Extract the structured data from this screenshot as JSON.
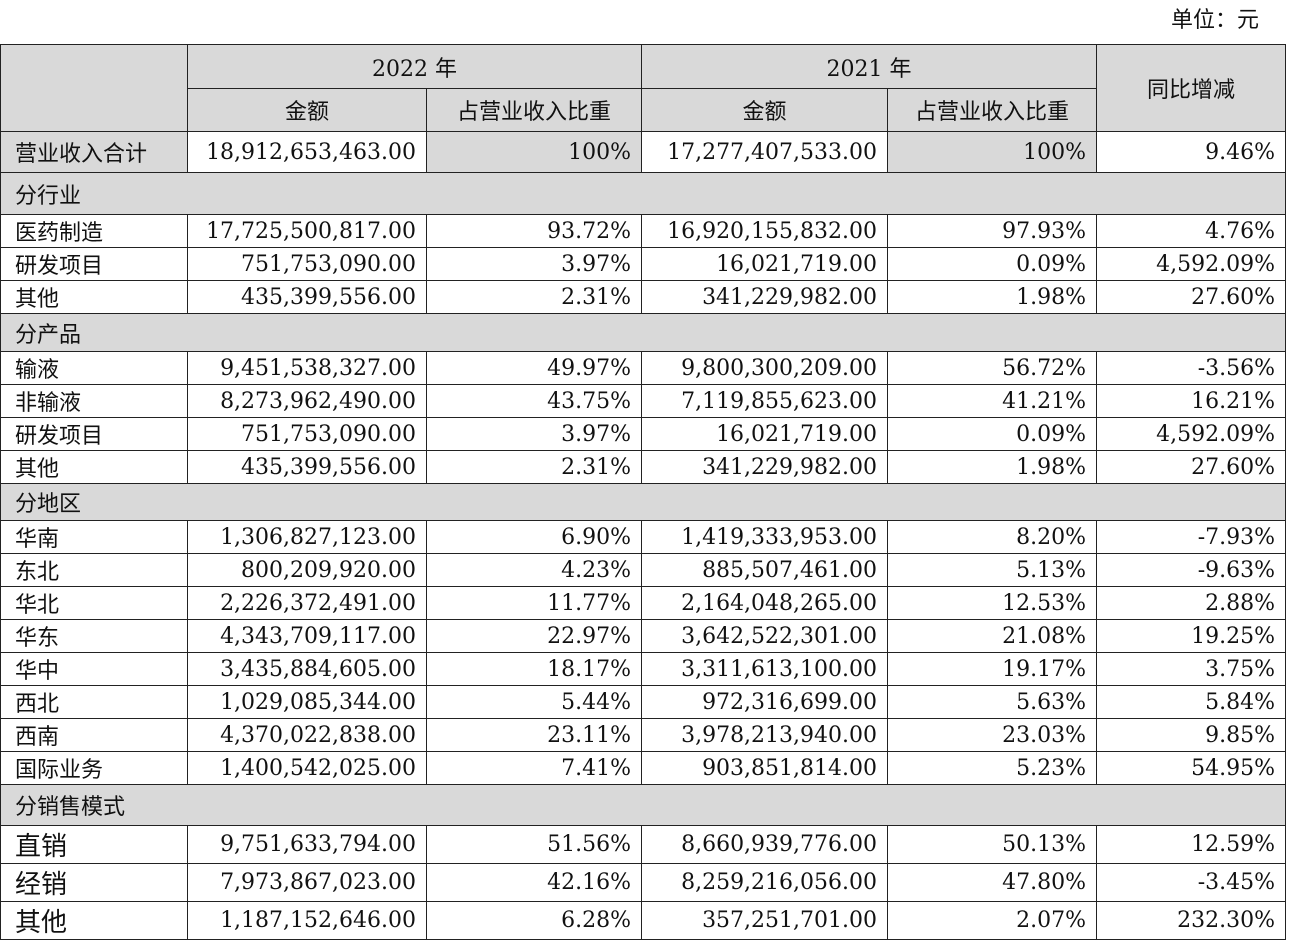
{
  "unit_label": "单位：元",
  "header": {
    "year_2022": "2022 年",
    "year_2021": "2021 年",
    "yoy": "同比增减",
    "amount": "金额",
    "ratio": "占营业收入比重"
  },
  "total": {
    "label": "营业收入合计",
    "a2022": "18,912,653,463.00",
    "p2022": "100%",
    "a2021": "17,277,407,533.00",
    "p2021": "100%",
    "yoy": "9.46%"
  },
  "sections": [
    {
      "title": "分行业",
      "rows": [
        {
          "label": "医药制造",
          "a2022": "17,725,500,817.00",
          "p2022": "93.72%",
          "a2021": "16,920,155,832.00",
          "p2021": "97.93%",
          "yoy": "4.76%"
        },
        {
          "label": "研发项目",
          "a2022": "751,753,090.00",
          "p2022": "3.97%",
          "a2021": "16,021,719.00",
          "p2021": "0.09%",
          "yoy": "4,592.09%"
        },
        {
          "label": "其他",
          "a2022": "435,399,556.00",
          "p2022": "2.31%",
          "a2021": "341,229,982.00",
          "p2021": "1.98%",
          "yoy": "27.60%"
        }
      ]
    },
    {
      "title": "分产品",
      "rows": [
        {
          "label": "输液",
          "a2022": "9,451,538,327.00",
          "p2022": "49.97%",
          "a2021": "9,800,300,209.00",
          "p2021": "56.72%",
          "yoy": "-3.56%"
        },
        {
          "label": "非输液",
          "a2022": "8,273,962,490.00",
          "p2022": "43.75%",
          "a2021": "7,119,855,623.00",
          "p2021": "41.21%",
          "yoy": "16.21%"
        },
        {
          "label": "研发项目",
          "a2022": "751,753,090.00",
          "p2022": "3.97%",
          "a2021": "16,021,719.00",
          "p2021": "0.09%",
          "yoy": "4,592.09%"
        },
        {
          "label": "其他",
          "a2022": "435,399,556.00",
          "p2022": "2.31%",
          "a2021": "341,229,982.00",
          "p2021": "1.98%",
          "yoy": "27.60%"
        }
      ]
    },
    {
      "title": "分地区",
      "rows": [
        {
          "label": "华南",
          "a2022": "1,306,827,123.00",
          "p2022": "6.90%",
          "a2021": "1,419,333,953.00",
          "p2021": "8.20%",
          "yoy": "-7.93%"
        },
        {
          "label": "东北",
          "a2022": "800,209,920.00",
          "p2022": "4.23%",
          "a2021": "885,507,461.00",
          "p2021": "5.13%",
          "yoy": "-9.63%"
        },
        {
          "label": "华北",
          "a2022": "2,226,372,491.00",
          "p2022": "11.77%",
          "a2021": "2,164,048,265.00",
          "p2021": "12.53%",
          "yoy": "2.88%"
        },
        {
          "label": "华东",
          "a2022": "4,343,709,117.00",
          "p2022": "22.97%",
          "a2021": "3,642,522,301.00",
          "p2021": "21.08%",
          "yoy": "19.25%"
        },
        {
          "label": "华中",
          "a2022": "3,435,884,605.00",
          "p2022": "18.17%",
          "a2021": "3,311,613,100.00",
          "p2021": "19.17%",
          "yoy": "3.75%"
        },
        {
          "label": "西北",
          "a2022": "1,029,085,344.00",
          "p2022": "5.44%",
          "a2021": "972,316,699.00",
          "p2021": "5.63%",
          "yoy": "5.84%"
        },
        {
          "label": "西南",
          "a2022": "4,370,022,838.00",
          "p2022": "23.11%",
          "a2021": "3,978,213,940.00",
          "p2021": "23.03%",
          "yoy": "9.85%"
        },
        {
          "label": "国际业务",
          "a2022": "1,400,542,025.00",
          "p2022": "7.41%",
          "a2021": "903,851,814.00",
          "p2021": "5.23%",
          "yoy": "54.95%"
        }
      ]
    },
    {
      "title": "分销售模式",
      "rows": [
        {
          "label": "直销",
          "a2022": "9,751,633,794.00",
          "p2022": "51.56%",
          "a2021": "8,660,939,776.00",
          "p2021": "50.13%",
          "yoy": "12.59%"
        },
        {
          "label": "经销",
          "a2022": "7,973,867,023.00",
          "p2022": "42.16%",
          "a2021": "8,259,216,056.00",
          "p2021": "47.80%",
          "yoy": "-3.45%"
        },
        {
          "label": "其他",
          "a2022": "1,187,152,646.00",
          "p2022": "6.28%",
          "a2021": "357,251,701.00",
          "p2021": "2.07%",
          "yoy": "232.30%"
        }
      ]
    }
  ]
}
